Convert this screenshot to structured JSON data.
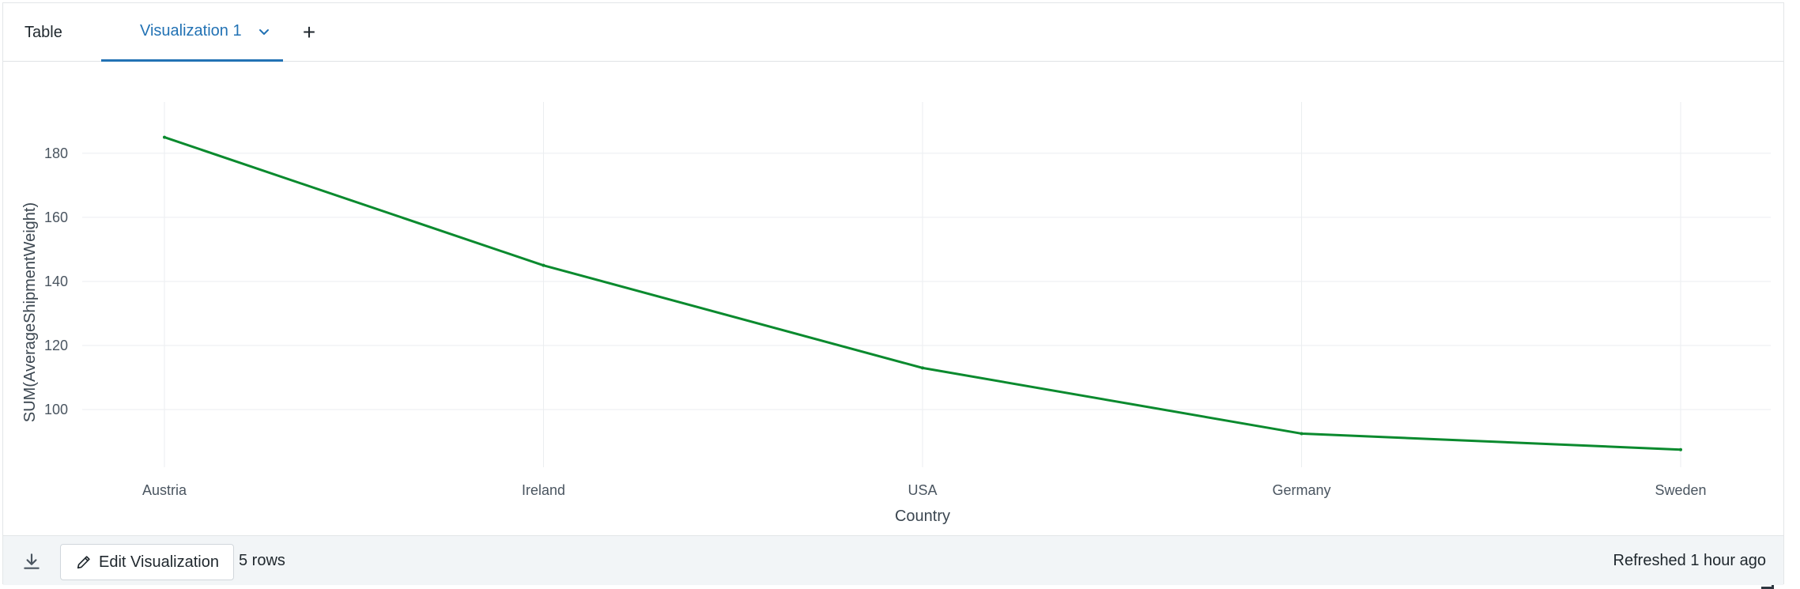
{
  "tabs": {
    "table_label": "Table",
    "vis_label": "Visualization 1",
    "add_label": "+"
  },
  "colors": {
    "accent": "#2272b4",
    "series": "#0a8a2e",
    "grid": "#ebeef0"
  },
  "icons": {
    "chevron": "chevron-down-icon",
    "download": "download-icon",
    "edit": "pencil-icon",
    "resize": "resize-handle-icon"
  },
  "chart_data": {
    "type": "line",
    "categories": [
      "Austria",
      "Ireland",
      "USA",
      "Germany",
      "Sweden"
    ],
    "series": [
      {
        "values": [
          185,
          145,
          113,
          92.5,
          87.5
        ]
      }
    ],
    "xlabel": "Country",
    "ylabel": "SUM(AverageShipmentWeight)",
    "yticks": [
      100,
      120,
      140,
      160,
      180
    ],
    "ylim": [
      82,
      196
    ],
    "grid": true,
    "legend": "none"
  },
  "footer": {
    "edit_label": "Edit Visualization",
    "rows_label": "5 rows",
    "refreshed_label": "Refreshed 1 hour ago"
  }
}
